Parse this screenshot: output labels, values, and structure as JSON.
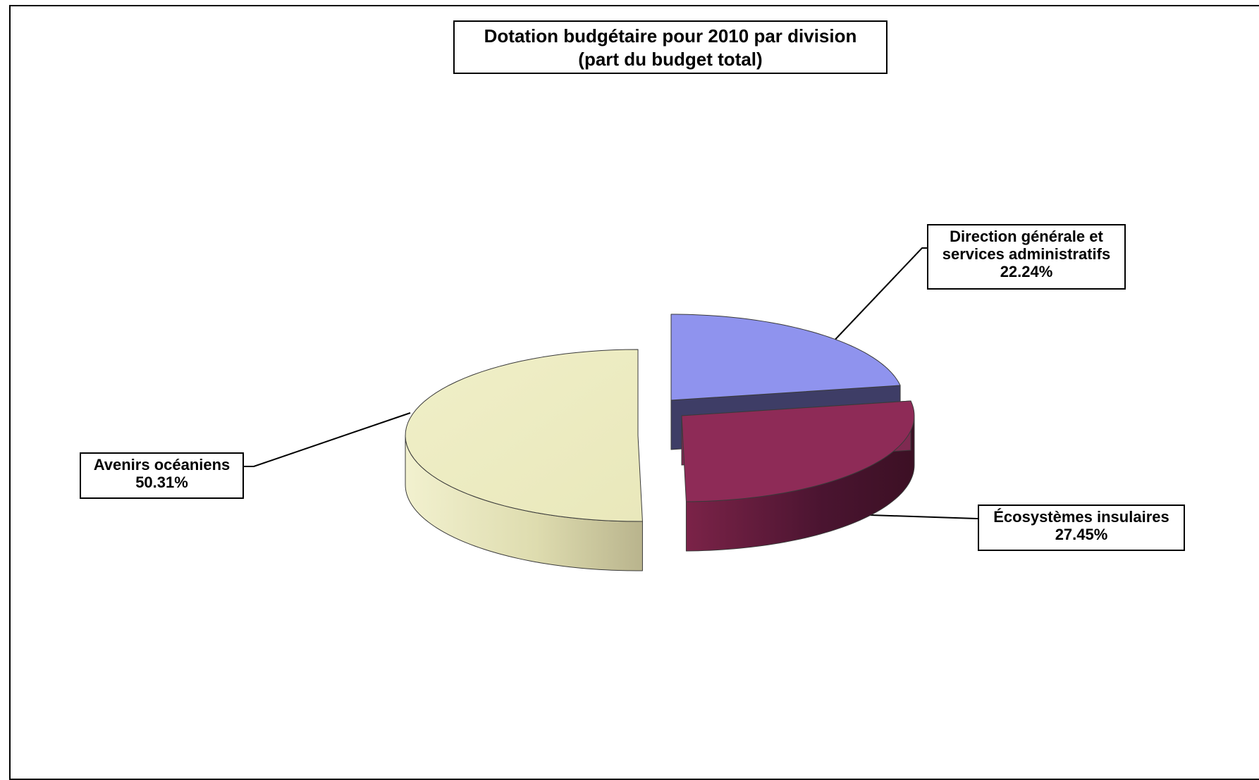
{
  "chart_data": {
    "type": "pie",
    "title": "Dotation budgétaire pour 2010 par division",
    "subtitle": "(part du budget total)",
    "categories": [
      "Direction générale et services administratifs",
      "Écosystèmes insulaires",
      "Avenirs océaniens"
    ],
    "values": [
      22.24,
      27.45,
      50.31
    ],
    "value_labels": [
      "22.24%",
      "27.45%",
      "50.31%"
    ],
    "label_lines": [
      [
        "Direction générale et",
        "services administratifs"
      ],
      [
        "Écosystèmes insulaires"
      ],
      [
        "Avenirs océaniens"
      ]
    ],
    "colors": [
      "#8f93ee",
      "#8e2b57",
      "#ecebbe"
    ],
    "side_colors": [
      "#3e3d66",
      "#4d1630",
      "#d9d6a2"
    ],
    "legend": "none",
    "style": "3d-exploded-pie"
  }
}
